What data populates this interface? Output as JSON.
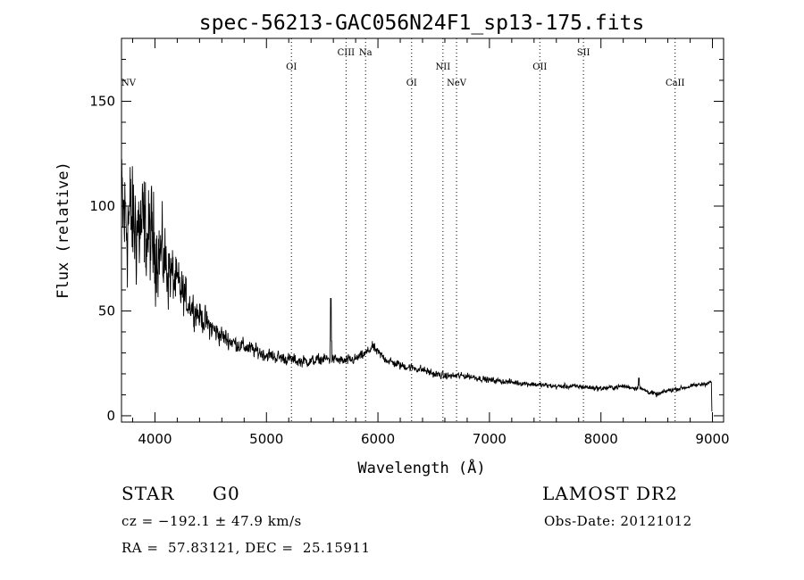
{
  "chart_data": {
    "type": "line",
    "title": "spec-56213-GAC056N24F1_sp13-175.fits",
    "xlabel": "Wavelength (Å)",
    "ylabel": "Flux (relative)",
    "xlim": [
      3700,
      9100
    ],
    "ylim": [
      -3,
      180
    ],
    "x_ticks": [
      4000,
      5000,
      6000,
      7000,
      8000,
      9000
    ],
    "x_tick_labels": [
      "4000",
      "5000",
      "6000",
      "7000",
      "8000",
      "9000"
    ],
    "y_ticks": [
      0,
      50,
      100,
      150
    ],
    "y_tick_labels": [
      "0",
      "50",
      "100",
      "150"
    ],
    "grid": false,
    "legend": "none",
    "line_color": "#000000",
    "lines": [
      {
        "label": "NV",
        "x": 3700,
        "row": 3
      },
      {
        "label": "OI",
        "x": 5224,
        "row": 1
      },
      {
        "label": "CIII",
        "x": 5714,
        "row": 0
      },
      {
        "label": "Na",
        "x": 5889,
        "row": 0
      },
      {
        "label": "OI",
        "x": 6302,
        "row": 2
      },
      {
        "label": "NII",
        "x": 6583,
        "row": 1
      },
      {
        "label": "NeV",
        "x": 6705,
        "row": 2
      },
      {
        "label": "OII",
        "x": 7452,
        "row": 1
      },
      {
        "label": "SII",
        "x": 7843,
        "row": 0
      },
      {
        "label": "CaII",
        "x": 8665,
        "row": 2
      }
    ],
    "spectrum_anchors": {
      "x": [
        3720,
        3800,
        3900,
        4000,
        4100,
        4200,
        4300,
        4400,
        4500,
        4600,
        4700,
        4800,
        4900,
        5000,
        5100,
        5200,
        5300,
        5400,
        5500,
        5600,
        5700,
        5800,
        5900,
        5950,
        6000,
        6100,
        6200,
        6300,
        6400,
        6500,
        6600,
        6700,
        6800,
        6900,
        7000,
        7200,
        7400,
        7600,
        7800,
        8000,
        8200,
        8350,
        8500,
        8600,
        8700,
        8800,
        8900,
        8990
      ],
      "y": [
        95,
        92,
        88,
        82,
        72,
        62,
        54,
        48,
        42,
        38,
        35,
        33,
        31,
        29,
        28,
        27,
        26,
        26,
        27,
        27,
        26,
        27,
        30,
        33,
        30,
        26,
        24,
        23,
        22,
        20,
        19,
        19,
        19,
        18,
        17,
        16,
        15,
        14,
        14,
        13,
        14,
        13,
        10,
        12,
        13,
        14,
        15,
        16
      ]
    },
    "spectrum_features": [
      {
        "x": 5578,
        "value": 56
      },
      {
        "x": 8340,
        "value": 18
      }
    ],
    "noise": {
      "x": [
        3700,
        4000,
        4300,
        4700,
        5200,
        6000,
        7000,
        9000
      ],
      "amplitude": [
        30,
        20,
        7,
        3.5,
        2.5,
        2,
        1.2,
        0.9
      ]
    }
  },
  "info": {
    "object_class": "STAR",
    "subclass": "G0",
    "survey": "LAMOST DR2",
    "redshift": "cz = −192.1 ± 47.9 km/s",
    "obs_date": "Obs-Date: 20121012",
    "coordinates": "RA =  57.83121, DEC =  25.15911"
  }
}
